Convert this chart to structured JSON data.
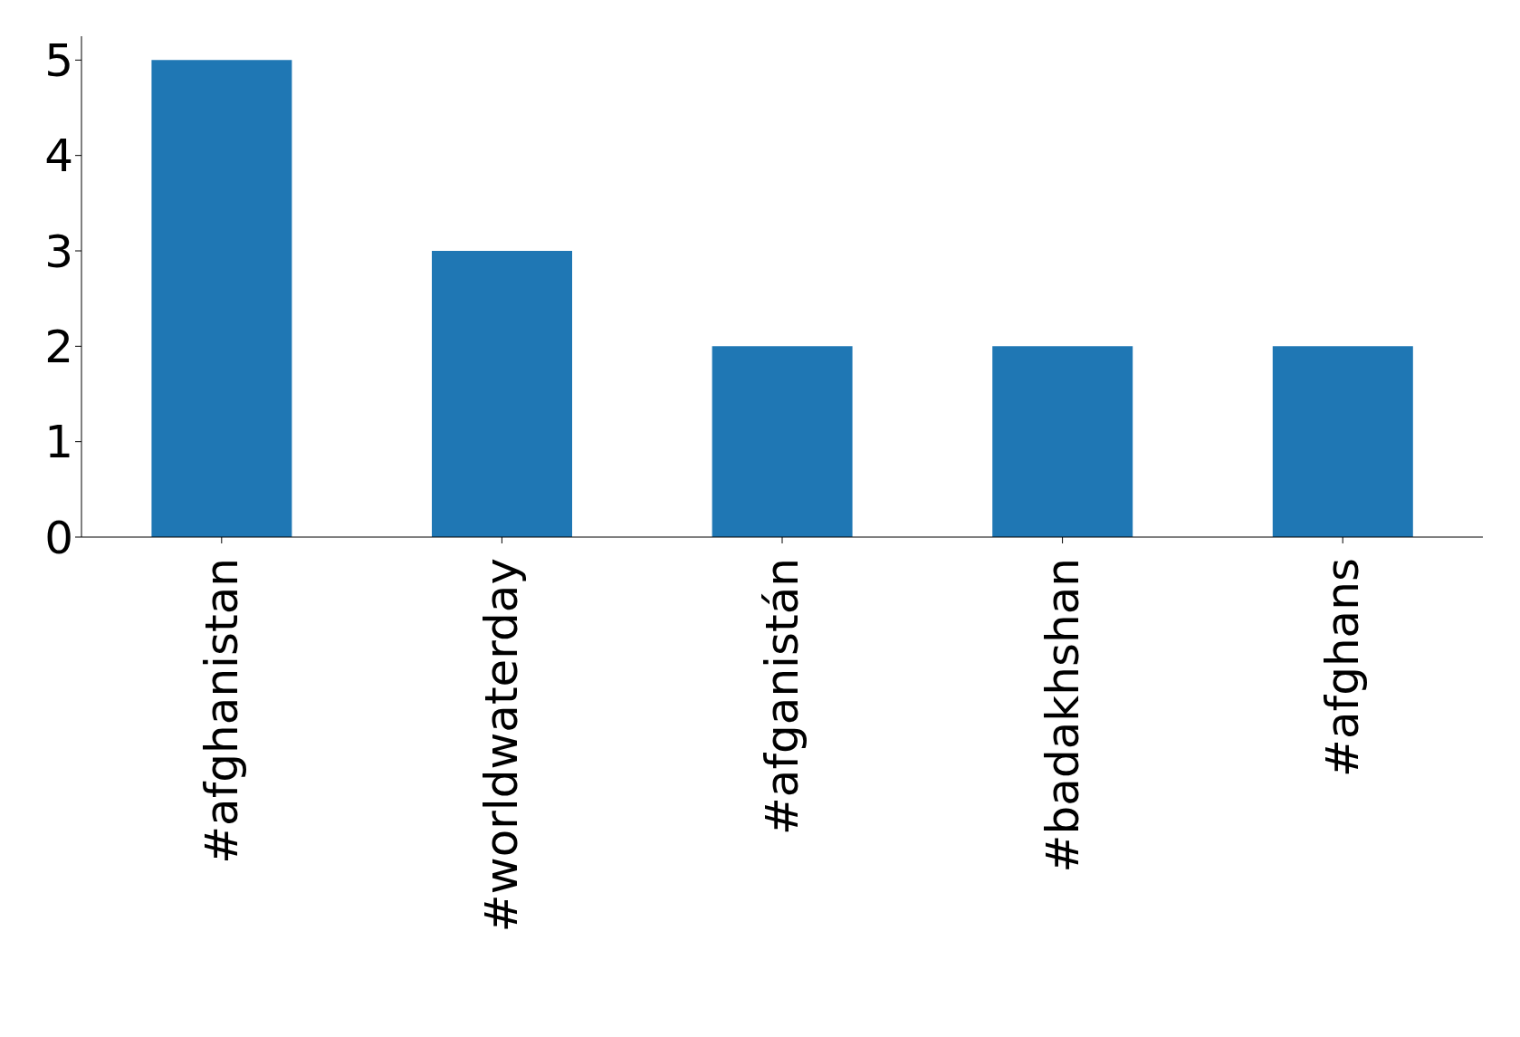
{
  "chart_data": {
    "type": "bar",
    "categories": [
      "#afghanistan",
      "#worldwaterday",
      "#afganistán",
      "#badakhshan",
      "#afghans"
    ],
    "values": [
      5,
      3,
      2,
      2,
      2
    ],
    "color": "#1f77b4",
    "ylim": [
      0,
      5.25
    ],
    "yticks": [
      0,
      1,
      2,
      3,
      4,
      5
    ],
    "grid": false,
    "legend": false
  }
}
